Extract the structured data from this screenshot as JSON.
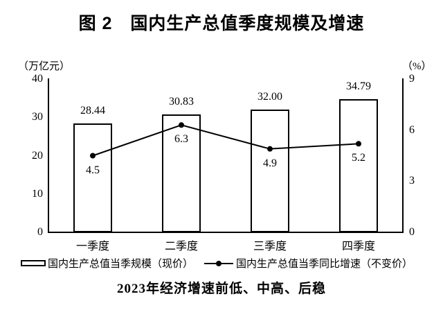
{
  "chart_data": {
    "type": "combo-bar-line",
    "title": "图 2　国内生产总值季度规模及增速",
    "caption": "2023年经济增速前低、中高、后稳",
    "categories": [
      "一季度",
      "二季度",
      "三季度",
      "四季度"
    ],
    "series": [
      {
        "name": "国内生产总值当季规模（现价）",
        "type": "bar",
        "axis": "left",
        "values": [
          28.44,
          30.83,
          32.0,
          34.79
        ],
        "value_labels": [
          "28.44",
          "30.83",
          "32.00",
          "34.79"
        ]
      },
      {
        "name": "国内生产总值当季同比增速（不变价）",
        "type": "line",
        "axis": "right",
        "values": [
          4.5,
          6.3,
          4.9,
          5.2
        ],
        "value_labels": [
          "4.5",
          "6.3",
          "4.9",
          "5.2"
        ]
      }
    ],
    "left_axis": {
      "label": "（万亿元）",
      "range": [
        0,
        40
      ],
      "ticks": [
        40,
        30,
        20,
        10,
        0
      ]
    },
    "right_axis": {
      "label": "（%）",
      "range": [
        0,
        9
      ],
      "ticks": [
        9,
        6,
        3,
        0
      ]
    },
    "grid": false,
    "legend_position": "bottom",
    "colors": {
      "bar_fill": "#ffffff",
      "stroke": "#000000",
      "background": "#ffffff"
    }
  }
}
